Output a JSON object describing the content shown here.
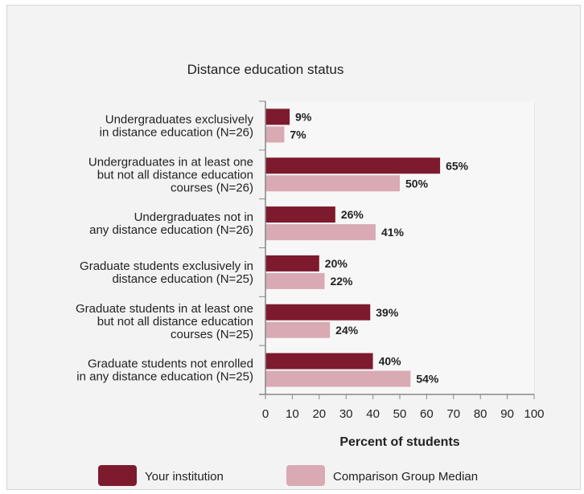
{
  "chart_data": {
    "type": "bar",
    "orientation": "horizontal",
    "title": "Distance education status",
    "xlabel": "Percent of students",
    "ylabel": "",
    "xlim": [
      0,
      100
    ],
    "ticks": [
      "0",
      "10",
      "20",
      "30",
      "40",
      "50",
      "60",
      "70",
      "80",
      "90",
      "100"
    ],
    "tick_values": [
      0,
      10,
      20,
      30,
      40,
      50,
      60,
      70,
      80,
      90,
      100
    ],
    "grid": true,
    "legend_position": "bottom",
    "categories": [
      [
        "Undergraduates exclusively",
        "in distance education (N=26)"
      ],
      [
        "Undergraduates in at least one",
        "but not all distance education",
        "courses (N=26)"
      ],
      [
        "Undergraduates not in",
        "any distance education (N=26)"
      ],
      [
        "Graduate students exclusively in",
        "distance education (N=25)"
      ],
      [
        "Graduate students in at least one",
        "but not all distance education",
        "courses (N=25)"
      ],
      [
        "Graduate students not enrolled",
        "in any distance education (N=25)"
      ]
    ],
    "series": [
      {
        "name": "Your institution",
        "color": "#7e1a2e",
        "values": [
          9,
          65,
          26,
          20,
          39,
          40
        ],
        "labels": [
          "9%",
          "65%",
          "26%",
          "20%",
          "39%",
          "40%"
        ]
      },
      {
        "name": "Comparison Group Median",
        "color": "#d9aab3",
        "values": [
          7,
          50,
          41,
          22,
          24,
          54
        ],
        "labels": [
          "7%",
          "50%",
          "41%",
          "22%",
          "24%",
          "54%"
        ]
      }
    ]
  }
}
